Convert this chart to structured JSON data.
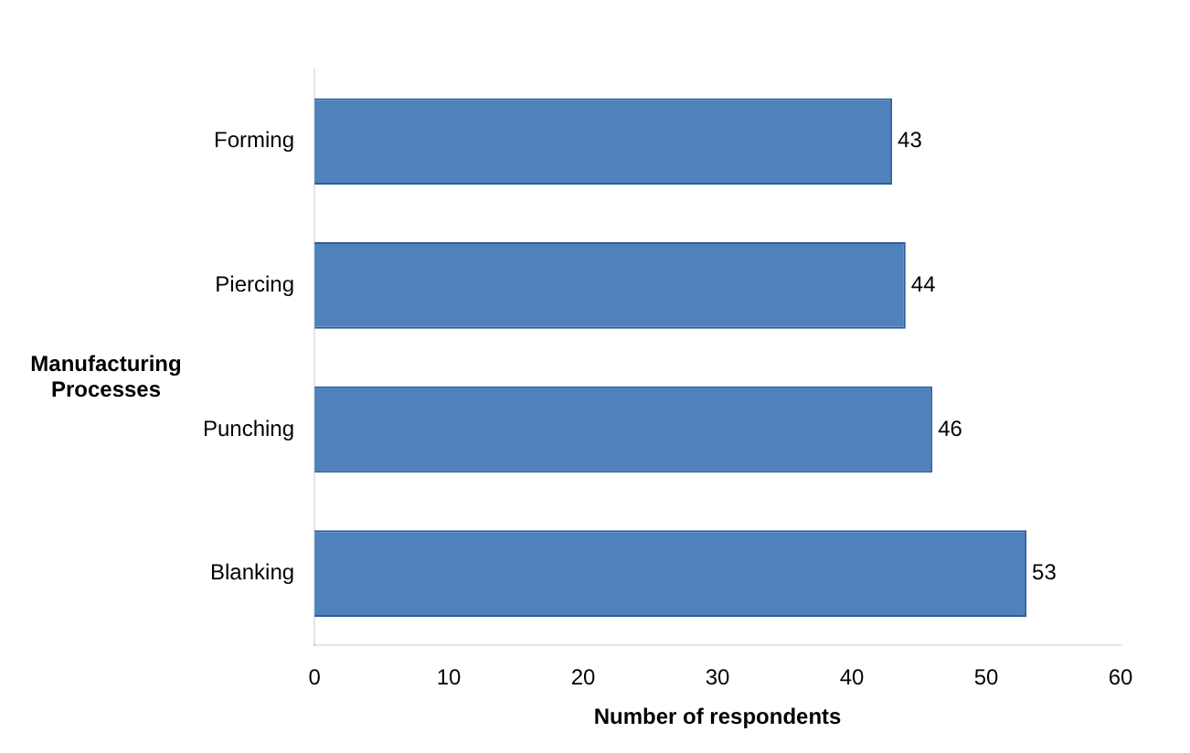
{
  "chart_data": {
    "type": "bar",
    "orientation": "horizontal",
    "categories": [
      "Forming",
      "Piercing",
      "Punching",
      "Blanking"
    ],
    "values": [
      43,
      44,
      46,
      53
    ],
    "color": "#4f81bd",
    "xlim": [
      0,
      60
    ],
    "xticks": [
      0,
      10,
      20,
      30,
      40,
      50,
      60
    ],
    "xlabel": "Number of respondents",
    "ylabel": "Manufacturing Processes",
    "data_labels": true,
    "grid": false,
    "legend": false
  }
}
